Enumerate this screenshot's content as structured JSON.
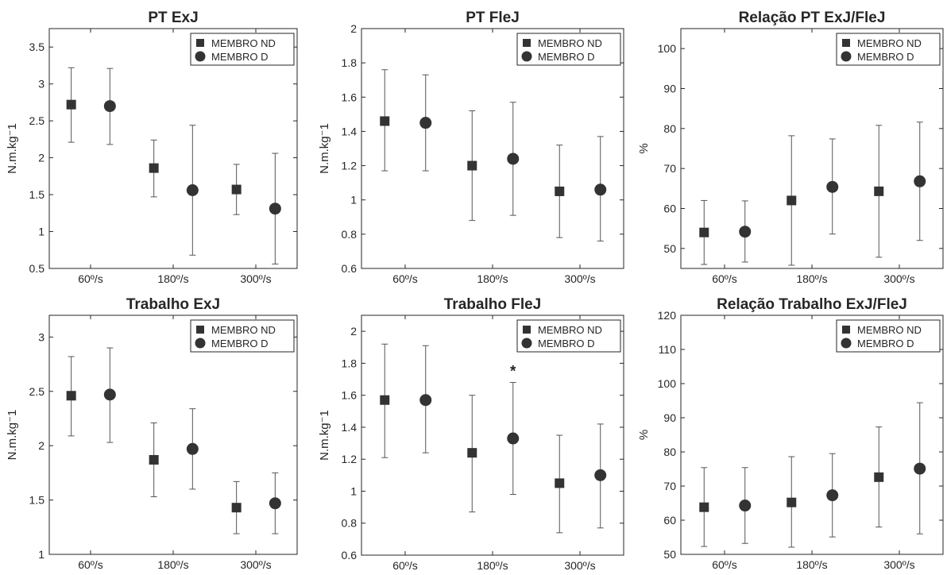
{
  "colors": {
    "marker": "#333333",
    "axis": "#262626",
    "errorbar": "#555555"
  },
  "chart_data": [
    {
      "type": "scatter",
      "title": "PT ExJ",
      "ylabel": "N.m.kg⁻1",
      "categories": [
        "60º/s",
        "180º/s",
        "300º/s"
      ],
      "ylim": [
        0.5,
        3.75
      ],
      "yticks": [
        "0.5",
        "1",
        "1.5",
        "2",
        "2.5",
        "3",
        "3.5"
      ],
      "legend_position": "top-right",
      "annotations": [],
      "series": [
        {
          "name": "MEMBRO ND",
          "marker": "square",
          "values": [
            2.72,
            1.86,
            1.57
          ],
          "err_low": [
            2.21,
            1.47,
            1.23
          ],
          "err_high": [
            3.22,
            2.24,
            1.91
          ]
        },
        {
          "name": "MEMBRO D",
          "marker": "circle",
          "values": [
            2.7,
            1.56,
            1.31
          ],
          "err_low": [
            2.18,
            0.68,
            0.56
          ],
          "err_high": [
            3.21,
            2.44,
            2.06
          ]
        }
      ]
    },
    {
      "type": "scatter",
      "title": "PT FleJ",
      "ylabel": "N.m.kg⁻1",
      "categories": [
        "60º/s",
        "180º/s",
        "300º/s"
      ],
      "ylim": [
        0.6,
        2
      ],
      "yticks": [
        "0.6",
        "0.8",
        "1",
        "1.2",
        "1.4",
        "1.6",
        "1.8",
        "2"
      ],
      "legend_position": "top-right",
      "annotations": [],
      "series": [
        {
          "name": "MEMBRO ND",
          "marker": "square",
          "values": [
            1.46,
            1.2,
            1.05
          ],
          "err_low": [
            1.17,
            0.88,
            0.78
          ],
          "err_high": [
            1.76,
            1.52,
            1.32
          ]
        },
        {
          "name": "MEMBRO D",
          "marker": "circle",
          "values": [
            1.45,
            1.24,
            1.06
          ],
          "err_low": [
            1.17,
            0.91,
            0.76
          ],
          "err_high": [
            1.73,
            1.57,
            1.37
          ]
        }
      ]
    },
    {
      "type": "scatter",
      "title": "Relação PT ExJ/FleJ",
      "ylabel": "%",
      "categories": [
        "60º/s",
        "180º/s",
        "300º/s"
      ],
      "ylim": [
        45,
        105
      ],
      "yticks": [
        "50",
        "60",
        "70",
        "80",
        "90",
        "100"
      ],
      "legend_position": "top-right",
      "annotations": [],
      "series": [
        {
          "name": "MEMBRO ND",
          "marker": "square",
          "values": [
            54.0,
            62.0,
            64.3
          ],
          "err_low": [
            46.0,
            45.8,
            47.8
          ],
          "err_high": [
            62.0,
            78.2,
            80.8
          ]
        },
        {
          "name": "MEMBRO D",
          "marker": "circle",
          "values": [
            54.2,
            65.4,
            66.8
          ],
          "err_low": [
            46.6,
            53.6,
            52.0
          ],
          "err_high": [
            61.9,
            77.4,
            81.6
          ]
        }
      ]
    },
    {
      "type": "scatter",
      "title": "Trabalho ExJ",
      "ylabel": "N.m.kg⁻1",
      "categories": [
        "60º/s",
        "180º/s",
        "300º/s"
      ],
      "ylim": [
        1,
        3.2
      ],
      "yticks": [
        "1",
        "1.5",
        "2",
        "2.5",
        "3"
      ],
      "legend_position": "top-right",
      "annotations": [],
      "series": [
        {
          "name": "MEMBRO ND",
          "marker": "square",
          "values": [
            2.46,
            1.87,
            1.43
          ],
          "err_low": [
            2.09,
            1.53,
            1.19
          ],
          "err_high": [
            2.82,
            2.21,
            1.67
          ]
        },
        {
          "name": "MEMBRO D",
          "marker": "circle",
          "values": [
            2.47,
            1.97,
            1.47
          ],
          "err_low": [
            2.03,
            1.6,
            1.19
          ],
          "err_high": [
            2.9,
            2.34,
            1.75
          ]
        }
      ]
    },
    {
      "type": "scatter",
      "title": "Trabalho FleJ",
      "ylabel": "N.m.kg⁻1",
      "categories": [
        "60º/s",
        "180º/s",
        "300º/s"
      ],
      "ylim": [
        0.6,
        2.1
      ],
      "yticks": [
        "0.6",
        "0.8",
        "1",
        "1.2",
        "1.4",
        "1.6",
        "1.8",
        "2"
      ],
      "legend_position": "top-right",
      "annotations": [
        {
          "text": "*",
          "series": 1,
          "category": 1
        }
      ],
      "series": [
        {
          "name": "MEMBRO ND",
          "marker": "square",
          "values": [
            1.57,
            1.24,
            1.05
          ],
          "err_low": [
            1.21,
            0.87,
            0.74
          ],
          "err_high": [
            1.92,
            1.6,
            1.35
          ]
        },
        {
          "name": "MEMBRO D",
          "marker": "circle",
          "values": [
            1.57,
            1.33,
            1.1
          ],
          "err_low": [
            1.24,
            0.98,
            0.77
          ],
          "err_high": [
            1.91,
            1.68,
            1.42
          ]
        }
      ]
    },
    {
      "type": "scatter",
      "title": "Relação Trabalho ExJ/FleJ",
      "ylabel": "%",
      "categories": [
        "60º/s",
        "180º/s",
        "300º/s"
      ],
      "ylim": [
        50,
        120
      ],
      "yticks": [
        "50",
        "60",
        "70",
        "80",
        "90",
        "100",
        "110",
        "120"
      ],
      "legend_position": "top-right",
      "annotations": [],
      "series": [
        {
          "name": "MEMBRO ND",
          "marker": "square",
          "values": [
            63.8,
            65.2,
            72.6
          ],
          "err_low": [
            52.3,
            52.1,
            58.0
          ],
          "err_high": [
            75.4,
            78.6,
            87.3
          ]
        },
        {
          "name": "MEMBRO D",
          "marker": "circle",
          "values": [
            64.3,
            67.3,
            75.1
          ],
          "err_low": [
            53.2,
            55.1,
            56.0
          ],
          "err_high": [
            75.4,
            79.5,
            94.4
          ]
        }
      ]
    }
  ]
}
